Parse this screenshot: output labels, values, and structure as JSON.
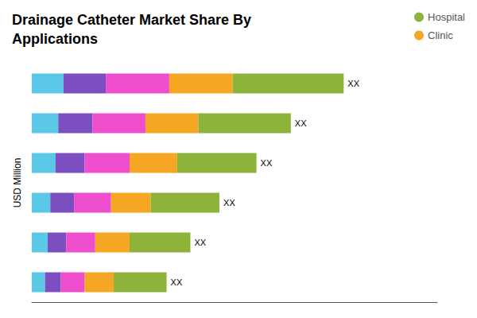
{
  "chart_data": {
    "type": "bar",
    "title": "Drainage Catheter Market Share By\nApplications",
    "ylabel": "USD Million",
    "orientation": "horizontal",
    "stacked": true,
    "categories": [
      null,
      null,
      null,
      null,
      null,
      null
    ],
    "series": [
      {
        "color": "#5BC8E8",
        "values": [
          1.2,
          1.0,
          0.9,
          0.7,
          0.6,
          0.5
        ]
      },
      {
        "color": "#7B4FBF",
        "values": [
          1.6,
          1.3,
          1.1,
          0.9,
          0.7,
          0.6
        ]
      },
      {
        "color": "#EE4DCC",
        "values": [
          2.4,
          2.0,
          1.7,
          1.4,
          1.1,
          0.9
        ]
      },
      {
        "name": "Clinic",
        "color": "#F5A623",
        "values": [
          2.4,
          2.0,
          1.8,
          1.5,
          1.3,
          1.1
        ]
      },
      {
        "name": "Hospital",
        "color": "#8DB33A",
        "values": [
          4.2,
          3.5,
          3.0,
          2.6,
          2.3,
          2.0
        ]
      }
    ],
    "annotations": [
      "XX",
      "XX",
      "XX",
      "XX",
      "XX",
      "XX"
    ],
    "xlim": [
      0,
      15.34
    ],
    "tick_labels": false,
    "grid": false,
    "legend": "upper right"
  }
}
